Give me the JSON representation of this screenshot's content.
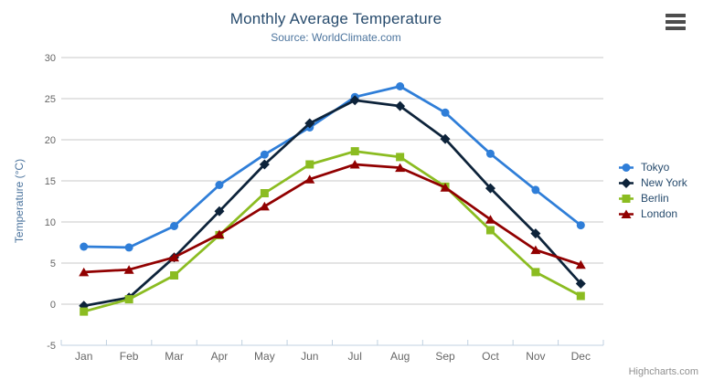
{
  "chart_data": {
    "type": "line",
    "title": "Monthly Average Temperature",
    "subtitle": "Source: WorldClimate.com",
    "categories": [
      "Jan",
      "Feb",
      "Mar",
      "Apr",
      "May",
      "Jun",
      "Jul",
      "Aug",
      "Sep",
      "Oct",
      "Nov",
      "Dec"
    ],
    "series": [
      {
        "name": "Tokyo",
        "color": "#2f7ed8",
        "marker": "circle",
        "values": [
          7.0,
          6.9,
          9.5,
          14.5,
          18.2,
          21.5,
          25.2,
          26.5,
          23.3,
          18.3,
          13.9,
          9.6
        ]
      },
      {
        "name": "New York",
        "color": "#0d233a",
        "marker": "diamond",
        "values": [
          -0.2,
          0.8,
          5.7,
          11.3,
          17.0,
          22.0,
          24.8,
          24.1,
          20.1,
          14.1,
          8.6,
          2.5
        ]
      },
      {
        "name": "Berlin",
        "color": "#8bbc21",
        "marker": "square",
        "values": [
          -0.9,
          0.6,
          3.5,
          8.4,
          13.5,
          17.0,
          18.6,
          17.9,
          14.3,
          9.0,
          3.9,
          1.0
        ]
      },
      {
        "name": "London",
        "color": "#910000",
        "marker": "triangle",
        "values": [
          3.9,
          4.2,
          5.7,
          8.5,
          11.9,
          15.2,
          17.0,
          16.6,
          14.2,
          10.3,
          6.6,
          4.8
        ]
      }
    ],
    "xlabel": "",
    "ylabel": "Temperature (°C)",
    "ylim": [
      -5,
      30
    ],
    "ytick_step": 5,
    "grid": true,
    "legend_position": "right"
  },
  "colors": {
    "title": "#274b6d",
    "subtitle": "#4d759e",
    "axis_title": "#4d759e",
    "axis_labels": "#666666",
    "gridline": "#c8c8c8",
    "axis_line": "#c0d0e0",
    "legend_text": "#274b6d",
    "credits": "#909090"
  },
  "icons": {
    "context_menu": "hamburger-icon"
  },
  "credits": {
    "label": "Highcharts.com"
  }
}
